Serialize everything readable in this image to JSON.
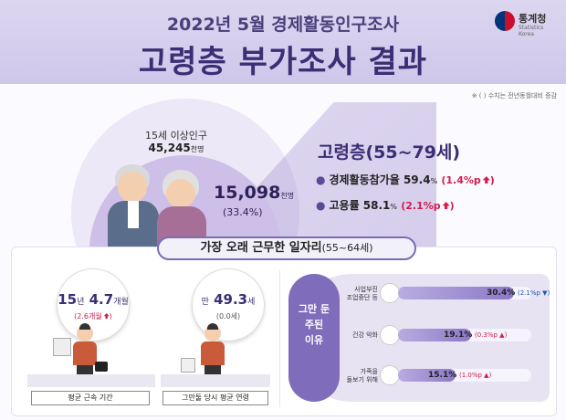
{
  "header": {
    "subtitle": "2022년 5월 경제활동인구조사",
    "title": "고령층 부가조사 결과",
    "logo_text": "통계청",
    "logo_sub": "Statistics Korea"
  },
  "note": "※ ( ) 수치는 전년동월대비 증감",
  "population": {
    "label": "15세 이상인구",
    "value": "45,245",
    "unit": "천명"
  },
  "elderly": {
    "value": "15,098",
    "unit": "천명",
    "pct": "(33.4%)",
    "heading": "고령층(55~79세)",
    "stats": [
      {
        "label": "경제활동참가율",
        "value": "59.4",
        "unit": "%",
        "change": "(1.4%p",
        "change_icon": "arrow-up-icon"
      },
      {
        "label": "고용률",
        "value": "58.1",
        "unit": "%",
        "change": "(2.1%p",
        "change_icon": "arrow-up-icon"
      }
    ]
  },
  "longest_job": {
    "heading": "가장 오래 근무한 일자리",
    "heading_range": "(55~64세)",
    "tenure": {
      "main_num1": "15",
      "main_unit1": "년",
      "main_num2": "4.7",
      "main_unit2": "개월",
      "change": "(2.6개월",
      "label": "평균 근속 기간"
    },
    "age": {
      "prefix": "만",
      "main_num": "49.3",
      "main_unit": "세",
      "change": "(0.0세)",
      "label": "그만둘 당시 평균 연령"
    }
  },
  "reasons": {
    "heading_line1": "그만 둔",
    "heading_line2": "주된",
    "heading_line3": "이유",
    "items": [
      {
        "label_line1": "사업부진",
        "label_line2": "조업중단 등",
        "value": 30.4,
        "value_text": "30.4%",
        "change": "(2.1%p",
        "direction": "down"
      },
      {
        "label_line1": "건강 악화",
        "label_line2": "",
        "value": 19.1,
        "value_text": "19.1%",
        "change": "(0.3%p",
        "direction": "up"
      },
      {
        "label_line1": "가족을",
        "label_line2": "돌보기 위해",
        "value": 15.1,
        "value_text": "15.1%",
        "change": "(1.0%p",
        "direction": "up"
      }
    ]
  },
  "colors": {
    "accent": "#3b2e74",
    "increase": "#d11c4d",
    "decrease": "#1c57b8",
    "bar": "#8c78c8"
  }
}
